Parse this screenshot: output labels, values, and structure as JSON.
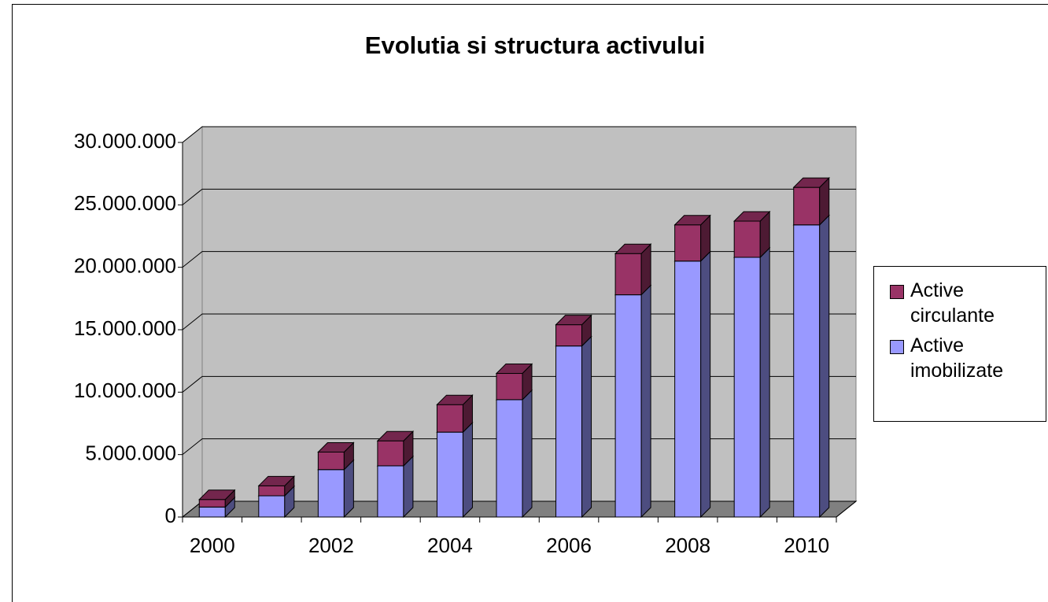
{
  "chart_data": {
    "type": "bar",
    "stacked": true,
    "title": "Evolutia si structura activului",
    "categories": [
      "2000",
      null,
      "2002",
      null,
      "2004",
      null,
      "2006",
      null,
      "2008",
      null,
      "2010"
    ],
    "series": [
      {
        "name": "Active imobilizate",
        "color": "#9999ff",
        "values": [
          800000,
          1700000,
          3800000,
          4100000,
          6800000,
          9400000,
          13700000,
          17800000,
          20500000,
          20800000,
          23400000
        ]
      },
      {
        "name": "Active circulante",
        "color": "#993366",
        "values": [
          600000,
          800000,
          1400000,
          2000000,
          2200000,
          2100000,
          1700000,
          3300000,
          2900000,
          2900000,
          3000000
        ]
      }
    ],
    "ylim": [
      0,
      30000000
    ],
    "yticks": [
      0,
      {
        "value": 5000000,
        "label": "5.000.000"
      },
      {
        "value": 10000000,
        "label": "10.000.000"
      },
      {
        "value": 15000000,
        "label": "15.000.000"
      },
      {
        "value": 20000000,
        "label": "20.000.000"
      },
      {
        "value": 25000000,
        "label": "25.000.000"
      },
      {
        "value": 30000000,
        "label": "30.000.000"
      }
    ],
    "grid": true,
    "legend": "right"
  }
}
